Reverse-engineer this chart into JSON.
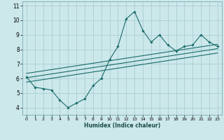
{
  "xlabel": "Humidex (Indice chaleur)",
  "ylabel": "",
  "bg_color": "#cce8eb",
  "grid_color": "#aacdd1",
  "line_color": "#1a6b6b",
  "xlim": [
    -0.5,
    23.5
  ],
  "ylim": [
    3.5,
    11.3
  ],
  "xticks": [
    0,
    1,
    2,
    3,
    4,
    5,
    6,
    7,
    8,
    9,
    10,
    11,
    12,
    13,
    14,
    15,
    16,
    17,
    18,
    19,
    20,
    21,
    22,
    23
  ],
  "yticks": [
    4,
    5,
    6,
    7,
    8,
    9,
    10,
    11
  ],
  "main_x": [
    0,
    1,
    2,
    3,
    4,
    5,
    6,
    7,
    8,
    9,
    10,
    11,
    12,
    13,
    14,
    15,
    16,
    17,
    18,
    19,
    20,
    21,
    22,
    23
  ],
  "main_y": [
    6.1,
    5.4,
    5.3,
    5.2,
    4.5,
    4.0,
    4.3,
    4.6,
    5.5,
    6.0,
    7.3,
    8.2,
    10.1,
    10.6,
    9.3,
    8.5,
    9.0,
    8.3,
    7.9,
    8.2,
    8.3,
    9.0,
    8.5,
    8.2
  ],
  "line1_x": [
    0,
    23
  ],
  "line1_y": [
    6.35,
    8.35
  ],
  "line2_x": [
    0,
    23
  ],
  "line2_y": [
    6.05,
    8.05
  ],
  "line3_x": [
    0,
    23
  ],
  "line3_y": [
    5.75,
    7.75
  ]
}
